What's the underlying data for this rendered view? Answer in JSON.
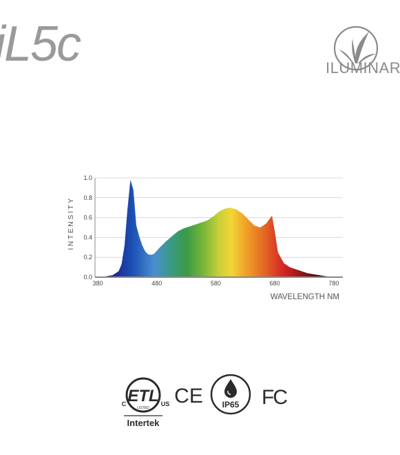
{
  "header": {
    "model_name": "iL5c",
    "brand_name": "ILUMINAR"
  },
  "chart_data": {
    "type": "area",
    "title": "",
    "xlabel": "WAVELENGTH NM",
    "ylabel": "INTENSITY",
    "xlim": [
      380,
      800
    ],
    "ylim": [
      0,
      1.0
    ],
    "x_ticks": [
      "380",
      "480",
      "580",
      "680",
      "780"
    ],
    "y_ticks": [
      "0.0",
      "0.2",
      "0.4",
      "0.6",
      "0.8",
      "1.0"
    ],
    "grid": true,
    "fill": "visible spectrum gradient",
    "series": [
      {
        "x": [
          380,
          390,
          400,
          410,
          420,
          425,
          430,
          435,
          440,
          445,
          450,
          455,
          460,
          465,
          470,
          475,
          480,
          490,
          500,
          510,
          520,
          530,
          540,
          550,
          560,
          570,
          580,
          590,
          600,
          610,
          620,
          630,
          640,
          650,
          660,
          670,
          675,
          680,
          685,
          690,
          700,
          710,
          720,
          730,
          740,
          750,
          760,
          770,
          780,
          790,
          800
        ],
        "y": [
          0.0,
          0.0,
          0.01,
          0.02,
          0.06,
          0.13,
          0.32,
          0.68,
          0.98,
          0.88,
          0.52,
          0.41,
          0.32,
          0.26,
          0.23,
          0.225,
          0.235,
          0.3,
          0.36,
          0.41,
          0.46,
          0.49,
          0.51,
          0.53,
          0.55,
          0.57,
          0.61,
          0.66,
          0.69,
          0.7,
          0.68,
          0.64,
          0.58,
          0.52,
          0.5,
          0.54,
          0.58,
          0.62,
          0.45,
          0.25,
          0.14,
          0.1,
          0.08,
          0.06,
          0.04,
          0.03,
          0.02,
          0.01,
          0.005,
          0.002,
          0.0
        ]
      }
    ]
  },
  "certifications": {
    "etl": {
      "mark": "ETL",
      "sub": "LISTED",
      "left": "C",
      "right": "US",
      "issuer": "Intertek"
    },
    "ce": "CE",
    "ip": "IP65",
    "fcc": "FC"
  }
}
